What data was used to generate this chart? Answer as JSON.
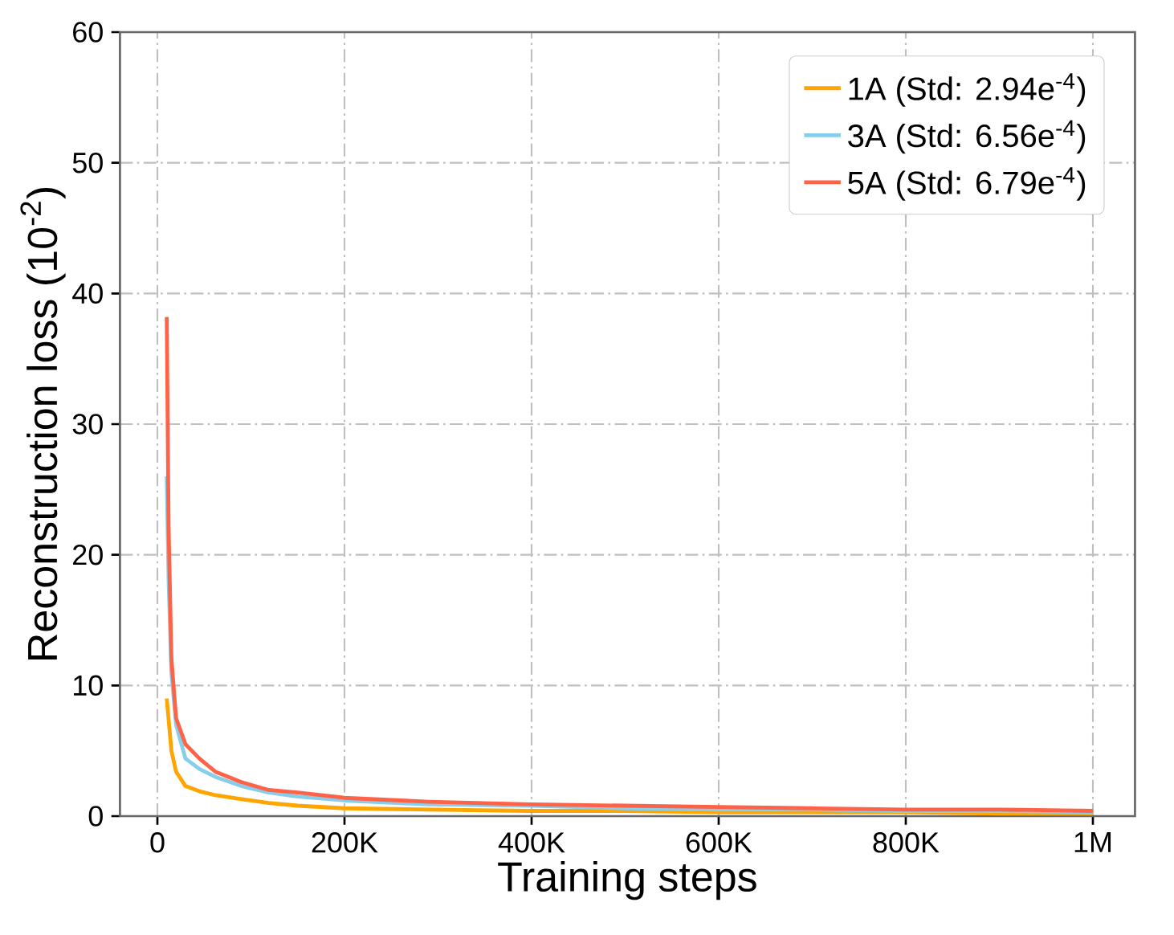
{
  "chart_data": {
    "type": "line",
    "xlabel": "Training steps",
    "ylabel": "Reconstruction loss (10$^{-2}$)",
    "xlim": [
      -40000,
      1045000
    ],
    "ylim": [
      0,
      60
    ],
    "xticks": [
      {
        "value": 0,
        "label": "0"
      },
      {
        "value": 200000,
        "label": "200K"
      },
      {
        "value": 400000,
        "label": "400K"
      },
      {
        "value": 600000,
        "label": "600K"
      },
      {
        "value": 800000,
        "label": "800K"
      },
      {
        "value": 1000000,
        "label": "1M"
      }
    ],
    "yticks": [
      0,
      10,
      20,
      30,
      40,
      50,
      60
    ],
    "grid": true,
    "legend": "top right",
    "line_style": "solid",
    "series": [
      {
        "name": "1A (Std: 2.94e$^{-4}$)",
        "color": "#ffa500",
        "x": [
          10000,
          15000,
          20000,
          30000,
          45000,
          62000,
          90000,
          119000,
          150000,
          200000,
          290000,
          400000,
          500000,
          600000,
          700000,
          800000,
          900000,
          1000000
        ],
        "values": [
          9.0,
          5.0,
          3.4,
          2.3,
          1.9,
          1.6,
          1.3,
          1.0,
          0.8,
          0.6,
          0.5,
          0.4,
          0.4,
          0.3,
          0.3,
          0.3,
          0.2,
          0.2
        ]
      },
      {
        "name": "3A (Std: 6.56e$^{-4}$)",
        "color": "#87ceeb",
        "x": [
          10000,
          12000,
          15000,
          20000,
          30000,
          45000,
          62000,
          90000,
          119000,
          150000,
          200000,
          290000,
          400000,
          500000,
          600000,
          700000,
          800000,
          900000,
          1000000
        ],
        "values": [
          26,
          18,
          11,
          7,
          4.4,
          3.6,
          3.0,
          2.3,
          1.8,
          1.5,
          1.2,
          0.9,
          0.8,
          0.6,
          0.5,
          0.5,
          0.4,
          0.4,
          0.3
        ]
      },
      {
        "name": "5A (Std: 6.79e$^{-4}$)",
        "color": "#ff6347",
        "x": [
          10000,
          12000,
          15000,
          20000,
          30000,
          45000,
          62000,
          90000,
          119000,
          150000,
          200000,
          290000,
          400000,
          500000,
          600000,
          700000,
          800000,
          900000,
          1000000
        ],
        "values": [
          38.2,
          22,
          12,
          7.5,
          5.5,
          4.4,
          3.4,
          2.6,
          2.0,
          1.8,
          1.4,
          1.1,
          0.9,
          0.8,
          0.7,
          0.6,
          0.5,
          0.5,
          0.4
        ]
      }
    ]
  }
}
